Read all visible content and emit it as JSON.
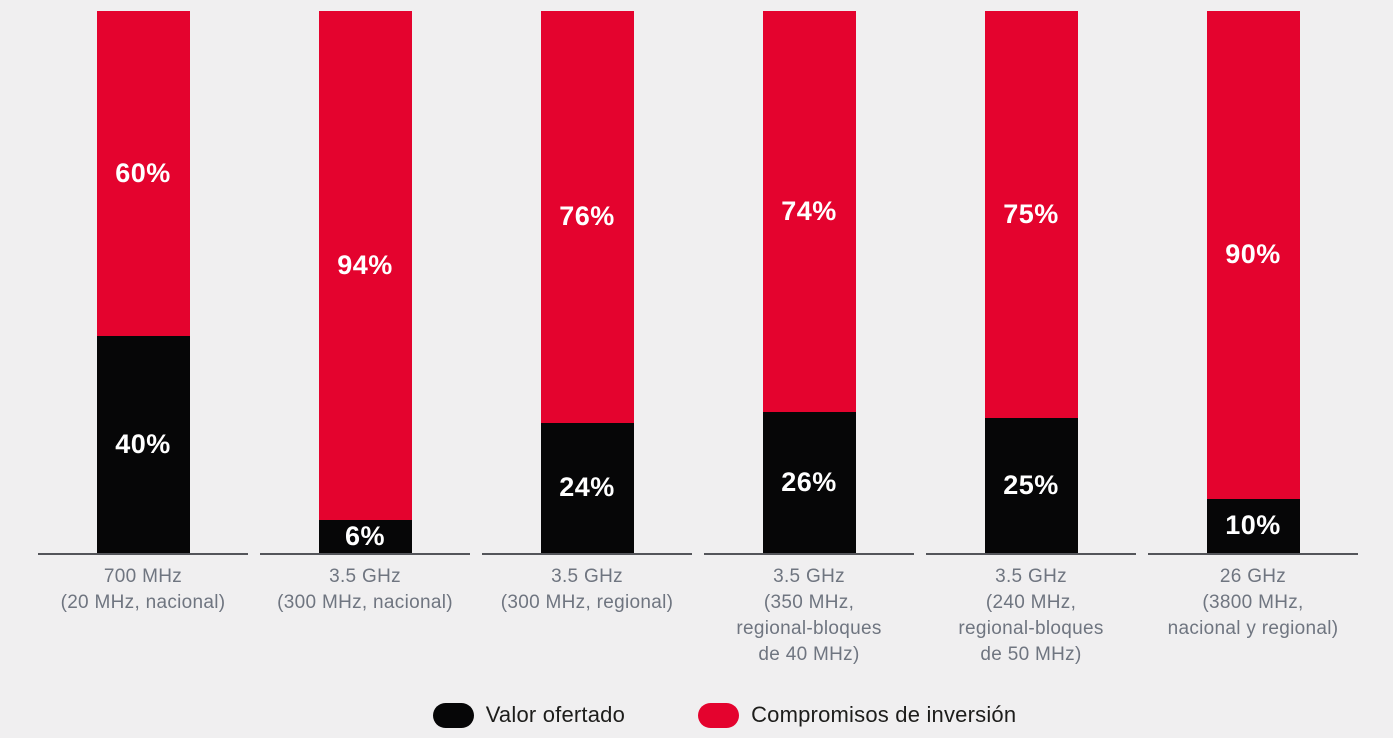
{
  "page": {
    "background": "#f0eff0"
  },
  "chart_data": {
    "type": "bar",
    "stacked": true,
    "orientation": "vertical",
    "units": "%",
    "ylim": [
      0,
      100
    ],
    "grid": false,
    "legend_position": "bottom",
    "categories": [
      "700 MHz\n(20 MHz, nacional)",
      "3.5 GHz\n(300 MHz, nacional)",
      "3.5 GHz\n(300 MHz, regional)",
      "3.5 GHz\n(350 MHz,\nregional-bloques\nde 40 MHz)",
      "3.5 GHz\n(240 MHz,\nregional-bloques\nde 50 MHz)",
      "26 GHz\n(3800 MHz,\nnacional y regional)"
    ],
    "series": [
      {
        "name": "Valor ofertado",
        "color": "#060607",
        "values": [
          40,
          6,
          24,
          26,
          25,
          10
        ]
      },
      {
        "name": "Compromisos de inversión",
        "color": "#e4032e",
        "values": [
          60,
          94,
          76,
          74,
          75,
          90
        ]
      }
    ],
    "value_label_format": "{value}%",
    "value_label_color": "#ffffff"
  },
  "legend": {
    "items": [
      {
        "label": "Valor ofertado",
        "color": "#060607"
      },
      {
        "label": "Compromisos de inversión",
        "color": "#e4032e"
      }
    ]
  },
  "style": {
    "axis_line_color": "#54555a",
    "category_label_color": "#6f7580",
    "legend_text_color": "#1d1d1b"
  }
}
